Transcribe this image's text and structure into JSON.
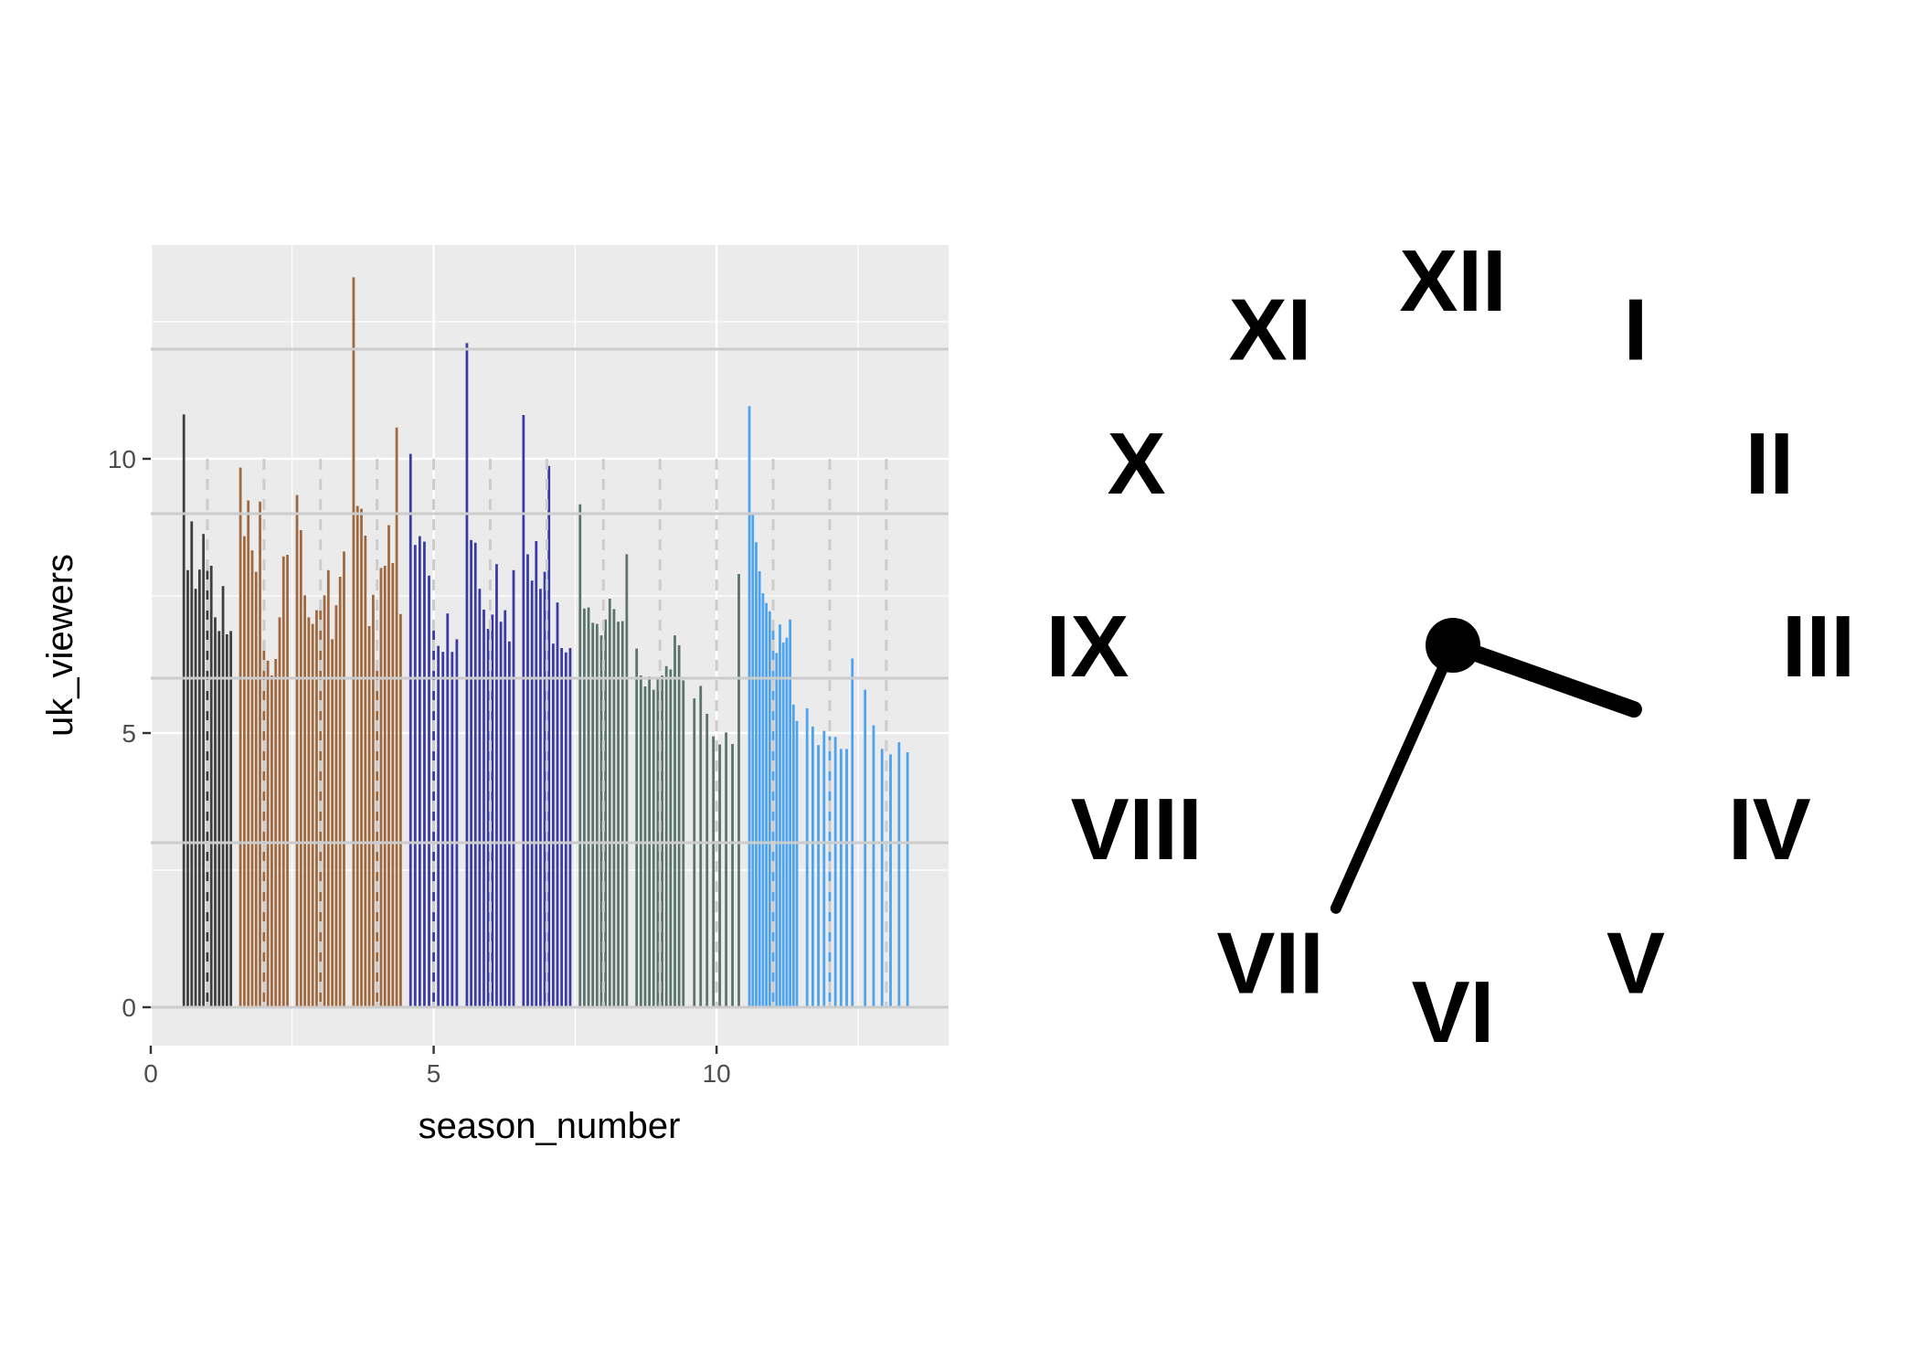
{
  "chart_data": {
    "type": "bar",
    "xlabel": "season_number",
    "ylabel": "uk_viewers",
    "xlim": [
      0,
      14.1
    ],
    "ylim": [
      -0.7,
      13.9
    ],
    "x_ticks": [
      0,
      5,
      10
    ],
    "y_ticks": [
      0,
      5,
      10
    ],
    "grid": true,
    "panel_background": "#ebebeb",
    "bar_width": 0.045,
    "series": [
      {
        "season": 1,
        "color": "#3f3f3f",
        "values": [
          10.81,
          7.97,
          8.86,
          7.63,
          7.98,
          8.63,
          7.96,
          8.05,
          7.11,
          6.86,
          7.68,
          6.8,
          6.86
        ]
      },
      {
        "season": 2,
        "color": "#a0683e",
        "values": [
          9.84,
          8.59,
          9.24,
          8.33,
          7.94,
          9.22,
          6.69,
          6.32,
          6.05,
          6.35,
          7.11,
          8.22,
          8.25
        ]
      },
      {
        "season": 3,
        "color": "#a0683e",
        "values": [
          9.34,
          8.7,
          7.51,
          7.11,
          6.99,
          7.24,
          7.25,
          7.51,
          7.97,
          6.71,
          7.33,
          7.85,
          8.31
        ]
      },
      {
        "season": 4,
        "color": "#a0683e",
        "values": [
          13.31,
          9.14,
          9.09,
          8.6,
          6.95,
          7.52,
          6.23,
          8.01,
          8.05,
          8.79,
          8.1,
          10.57,
          7.17
        ]
      },
      {
        "season": 5,
        "color": "#3b3ba5",
        "values": [
          10.09,
          8.43,
          8.59,
          8.49,
          7.87,
          6.94,
          6.59,
          6.48,
          7.18,
          6.48,
          6.71
        ]
      },
      {
        "season": 6,
        "color": "#3b3ba5",
        "values": [
          12.11,
          8.52,
          8.47,
          7.63,
          7.25,
          6.9,
          7.16,
          8.08,
          7.03,
          7.24,
          6.67,
          7.97
        ]
      },
      {
        "season": 7,
        "color": "#3b3ba5",
        "values": [
          10.8,
          8.26,
          7.78,
          8.5,
          7.63,
          7.94,
          9.87,
          6.63,
          7.38,
          6.55,
          6.47,
          6.55
        ]
      },
      {
        "season": 8,
        "color": "#5b736d",
        "values": [
          9.17,
          7.27,
          7.29,
          7.01,
          6.99,
          6.78,
          7.07,
          7.45,
          7.26,
          7.03,
          7.04,
          8.26
        ]
      },
      {
        "season": 9,
        "color": "#5b736d",
        "values": [
          6.54,
          6.05,
          5.85,
          6.03,
          5.79,
          6.02,
          6.05,
          6.22,
          6.16,
          6.78,
          6.6,
          5.96
        ]
      },
      {
        "season": 10,
        "color": "#5b736d",
        "values": [
          5.63,
          5.86,
          5.35,
          4.94,
          4.79,
          5.01,
          4.8,
          7.9
        ]
      },
      {
        "season": 11,
        "color": "#4ea3ef",
        "values": [
          10.96,
          9.01,
          8.48,
          7.95,
          7.55,
          7.37,
          7.22,
          6.94,
          6.46,
          6.98,
          6.65,
          6.74,
          7.07,
          5.52,
          5.22
        ]
      },
      {
        "season": 12,
        "color": "#4ea3ef",
        "values": [
          5.45,
          5.12,
          4.78,
          5.04,
          4.94,
          4.93,
          4.71,
          4.71,
          6.36
        ]
      },
      {
        "season": 13,
        "color": "#4ea3ef",
        "values": [
          5.79,
          5.14,
          4.71,
          4.61,
          4.83,
          4.65
        ]
      }
    ]
  },
  "clock": {
    "numerals": [
      "XII",
      "I",
      "II",
      "III",
      "IV",
      "V",
      "VI",
      "VII",
      "VIII",
      "IX",
      "X",
      "XI"
    ],
    "hour_hand_hours": 3.65,
    "minute_hand_minutes": 34.0,
    "hand_color": "#000000"
  }
}
